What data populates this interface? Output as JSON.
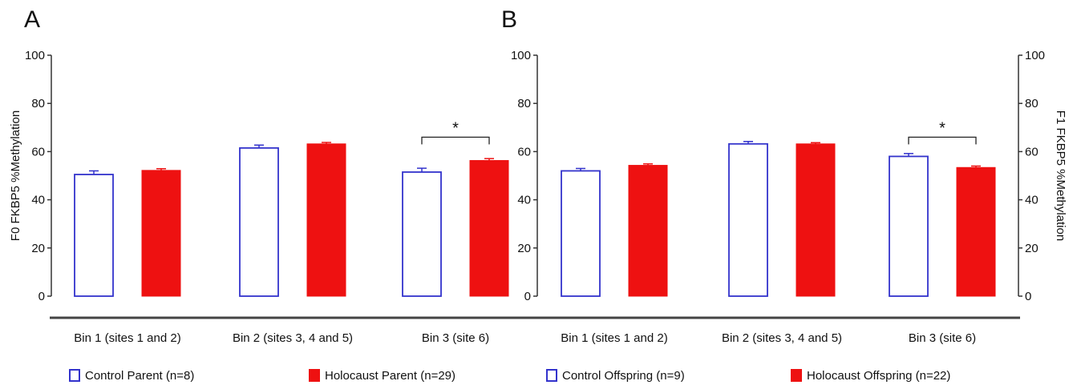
{
  "colors": {
    "control": "#3333cc",
    "holocaust": "#ee1111",
    "axis": "#333333"
  },
  "chart_data": [
    {
      "type": "bar",
      "panel_label": "A",
      "ylabel": "F0 FKBP5 %Methylation",
      "ylim": [
        0,
        100
      ],
      "yticks": [
        "0",
        "20",
        "40",
        "60",
        "80",
        "100"
      ],
      "categories": [
        "Bin 1 (sites 1 and 2)",
        "Bin 2 (sites 3, 4 and 5)",
        "Bin 3 (site 6)"
      ],
      "series": [
        {
          "name": "Control Parent  (n=8)",
          "values": [
            50.5,
            61.5,
            51.5
          ],
          "errors": [
            1.5,
            1.2,
            1.6
          ],
          "style": "hollow"
        },
        {
          "name": "Holocaust Parent (n=29)",
          "values": [
            52.2,
            63.2,
            56.3
          ],
          "errors": [
            0.7,
            0.6,
            0.8
          ],
          "style": "solid"
        }
      ],
      "annotations": [
        {
          "category": 2,
          "text": "*",
          "bracket_y": 66
        }
      ]
    },
    {
      "type": "bar",
      "panel_label": "B",
      "ylabel": "F1 FKBP5 %Methylation",
      "ylim": [
        0,
        100
      ],
      "yticks": [
        "0",
        "20",
        "40",
        "60",
        "80",
        "100"
      ],
      "categories": [
        "Bin 1 (sites 1 and 2)",
        "Bin 2 (sites 3, 4 and 5)",
        "Bin 3 (site 6)"
      ],
      "series": [
        {
          "name": "Control Offspring  (n=9)",
          "values": [
            52.0,
            63.2,
            58.0
          ],
          "errors": [
            1.0,
            1.0,
            1.2
          ],
          "style": "hollow"
        },
        {
          "name": "Holocaust Offspring (n=22)",
          "values": [
            54.3,
            63.2,
            53.4
          ],
          "errors": [
            0.6,
            0.5,
            0.6
          ],
          "style": "solid"
        }
      ],
      "annotations": [
        {
          "category": 2,
          "text": "*",
          "bracket_y": 66
        }
      ]
    }
  ],
  "legend": [
    {
      "label": "Control Parent  (n=8)",
      "style": "hollow"
    },
    {
      "label": "Holocaust Parent (n=29)",
      "style": "solid"
    },
    {
      "label": "Control Offspring  (n=9)",
      "style": "hollow"
    },
    {
      "label": "Holocaust Offspring (n=22)",
      "style": "solid"
    }
  ]
}
